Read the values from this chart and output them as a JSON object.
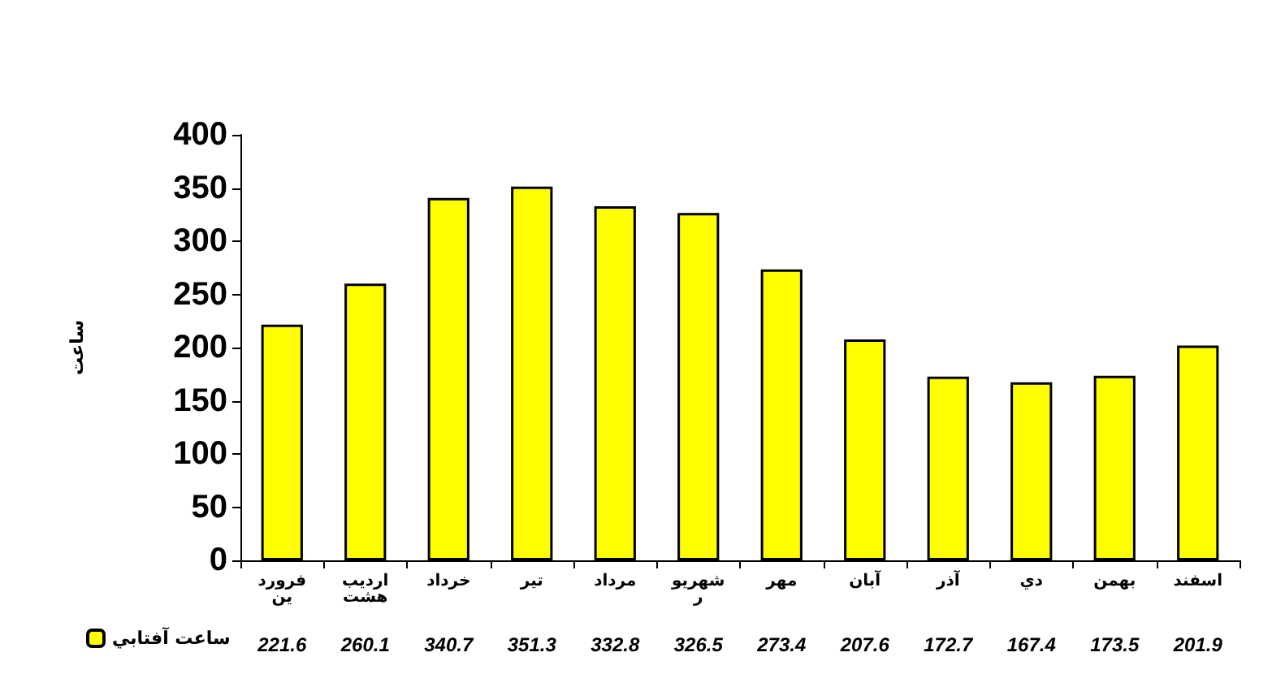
{
  "chart_data": {
    "type": "bar",
    "ylabel": "ساعت",
    "categories": [
      "فروردين",
      "ارديبهشت",
      "خرداد",
      "تير",
      "مرداد",
      "شهريور",
      "مهر",
      "آبان",
      "آذر",
      "دي",
      "بهمن",
      "اسفند"
    ],
    "series": [
      {
        "name": "ساعت آفتابي",
        "color": "#ffff00",
        "values": [
          221.6,
          260.1,
          340.7,
          351.3,
          332.8,
          326.5,
          273.4,
          207.6,
          172.7,
          167.4,
          173.5,
          201.9
        ]
      }
    ],
    "ylim": [
      0,
      400
    ],
    "yticks": [
      0,
      50,
      100,
      150,
      200,
      250,
      300,
      350,
      400
    ],
    "grid": false,
    "legend": "bottom left",
    "data_labels": true
  }
}
